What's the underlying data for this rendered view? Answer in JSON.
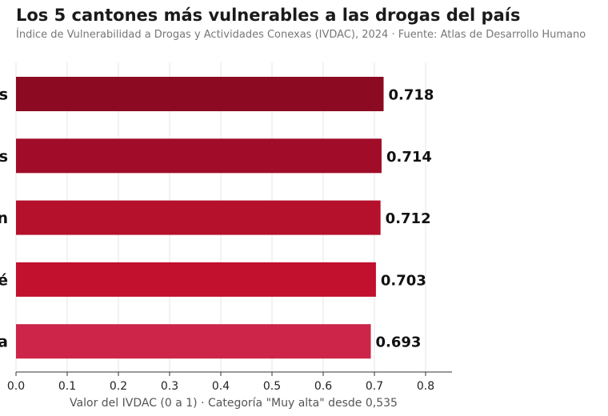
{
  "title": "Los 5 cantones más vulnerables a las drogas del país",
  "subtitle": "Índice de Vulnerabilidad a Drogas y Actividades Conexas (IVDAC), 2024 · Fuente: Atlas de Desarrollo Humano",
  "chart_data": {
    "type": "bar",
    "orientation": "horizontal",
    "categories": [
      "s",
      "s",
      "n",
      "é",
      "a"
    ],
    "values": [
      0.718,
      0.714,
      0.712,
      0.703,
      0.693
    ],
    "value_labels": [
      "0.718",
      "0.714",
      "0.712",
      "0.703",
      "0.693"
    ],
    "colors": [
      "#8c0a22",
      "#a10d29",
      "#b5102c",
      "#c2102f",
      "#cc2549"
    ],
    "xlabel": "Valor del IVDAC (0 a 1) · Categoría \"Muy alta\" desde 0,535",
    "ylabel": "",
    "xlim": [
      0,
      0.85
    ],
    "xticks": [
      "0.0",
      "0.1",
      "0.2",
      "0.3",
      "0.4",
      "0.5",
      "0.6",
      "0.7",
      "0.8"
    ],
    "xtick_values": [
      0,
      0.1,
      0.2,
      0.3,
      0.4,
      0.5,
      0.6,
      0.7,
      0.8
    ],
    "grid": true
  }
}
